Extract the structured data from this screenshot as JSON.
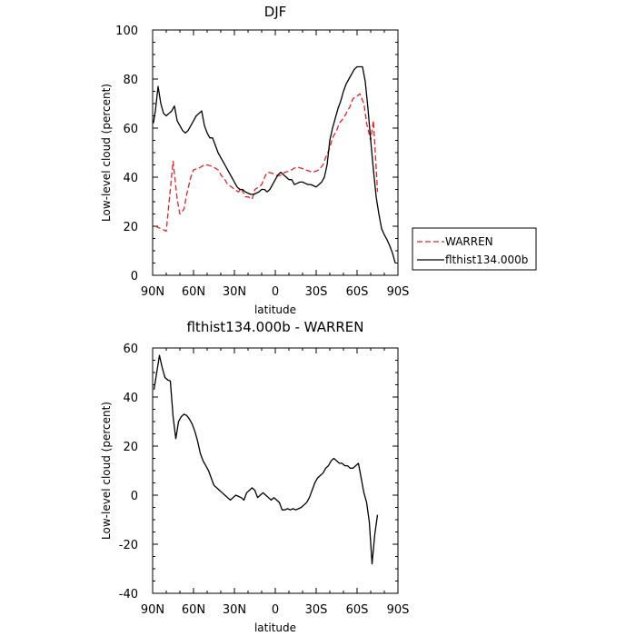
{
  "chart_data": [
    {
      "type": "line",
      "title": "DJF",
      "xlabel": "latitude",
      "ylabel": "Low-level cloud (percent)",
      "xlim": [
        90,
        -90
      ],
      "ylim": [
        0,
        100
      ],
      "x_ticks": [
        90,
        60,
        30,
        0,
        -30,
        -60,
        -90
      ],
      "x_tick_labels": [
        "90N",
        "60N",
        "30N",
        "0",
        "30S",
        "60S",
        "90S"
      ],
      "y_ticks": [
        0,
        20,
        40,
        60,
        80,
        100
      ],
      "y_tick_labels": [
        "0",
        "20",
        "40",
        "60",
        "80",
        "100"
      ],
      "grid": false,
      "legend_position": "right",
      "series": [
        {
          "name": "WARREN",
          "color": "#e8222a",
          "dash": "dashed",
          "x": [
            88,
            80,
            75,
            72,
            70,
            67,
            65,
            62,
            60,
            57,
            55,
            52,
            50,
            47,
            45,
            42,
            40,
            37,
            35,
            32,
            30,
            27,
            25,
            22,
            20,
            17,
            15,
            12,
            10,
            7,
            5,
            2,
            0,
            -2,
            -5,
            -7,
            -10,
            -12,
            -15,
            -17,
            -20,
            -22,
            -25,
            -27,
            -30,
            -32,
            -35,
            -37,
            -40,
            -42,
            -45,
            -47,
            -50,
            -52,
            -55,
            -57,
            -60,
            -62,
            -65,
            -67,
            -70,
            -72,
            -75
          ],
          "y": [
            20,
            18,
            46.5,
            31,
            25,
            27,
            33,
            40,
            43,
            43.5,
            44,
            45,
            45,
            44.5,
            44,
            43,
            41,
            39,
            37,
            36,
            35,
            34,
            35.5,
            32,
            32,
            31,
            35,
            36,
            37,
            41,
            42,
            41.5,
            41,
            40.5,
            41,
            42,
            42.5,
            43,
            44,
            44,
            43.5,
            43,
            42.5,
            42,
            42.5,
            43,
            45,
            48,
            52,
            56,
            59,
            62,
            64,
            66,
            69,
            72,
            73,
            74,
            70,
            62,
            55,
            63,
            34
          ]
        },
        {
          "name": "flthist134.000b",
          "color": "#000000",
          "dash": "solid",
          "x": [
            89.5,
            88,
            86,
            84,
            82,
            80,
            78,
            76,
            74,
            72,
            70,
            68,
            66,
            64,
            62,
            60,
            58,
            56,
            54,
            52,
            50,
            48,
            46,
            44,
            42,
            40,
            38,
            36,
            34,
            32,
            30,
            28,
            26,
            24,
            22,
            20,
            18,
            16,
            14,
            12,
            10,
            8,
            6,
            4,
            2,
            0,
            -2,
            -4,
            -6,
            -8,
            -10,
            -12,
            -14,
            -16,
            -18,
            -20,
            -22,
            -24,
            -26,
            -28,
            -30,
            -32,
            -34,
            -36,
            -38,
            -40,
            -42,
            -44,
            -46,
            -48,
            -50,
            -52,
            -54,
            -56,
            -58,
            -60,
            -62,
            -64,
            -66,
            -68,
            -70,
            -72,
            -74,
            -76,
            -78,
            -80,
            -82,
            -84,
            -86,
            -88
          ],
          "y": [
            62,
            67,
            77,
            70,
            66,
            65,
            66,
            67,
            69,
            63,
            61,
            59,
            58,
            59,
            61,
            63,
            65,
            66,
            67,
            61,
            58,
            56,
            56,
            53,
            50,
            48,
            46,
            44,
            42,
            40,
            38,
            36,
            35,
            35,
            34,
            33.5,
            33,
            33,
            33.5,
            34,
            35,
            35,
            34,
            35,
            37,
            39,
            41,
            42,
            41,
            40,
            39,
            39,
            37,
            37.5,
            38,
            38,
            37.5,
            37,
            37,
            36.5,
            36,
            37,
            38,
            40,
            45,
            55,
            60,
            64,
            68,
            71,
            75,
            78,
            80,
            82,
            84,
            85,
            85,
            85,
            79,
            68,
            55,
            43,
            32,
            25,
            19,
            16.5,
            14.5,
            12,
            9,
            5
          ]
        }
      ]
    },
    {
      "type": "line",
      "title": "flthist134.000b - WARREN",
      "xlabel": "latitude",
      "ylabel": "Low-level cloud (percent)",
      "xlim": [
        90,
        -90
      ],
      "ylim": [
        -40,
        60
      ],
      "x_ticks": [
        90,
        60,
        30,
        0,
        -30,
        -60,
        -90
      ],
      "x_tick_labels": [
        "90N",
        "60N",
        "30N",
        "0",
        "30S",
        "60S",
        "90S"
      ],
      "y_ticks": [
        -40,
        -20,
        0,
        20,
        40,
        60
      ],
      "y_tick_labels": [
        "-40",
        "-20",
        "0",
        "20",
        "40",
        "60"
      ],
      "grid": false,
      "series": [
        {
          "color": "#000000",
          "dash": "solid",
          "x": [
            89,
            87,
            85,
            83,
            81,
            79,
            77,
            75,
            73,
            71,
            69,
            67,
            65,
            63,
            61,
            59,
            57,
            55,
            53,
            51,
            49,
            47,
            45,
            43,
            41,
            39,
            37,
            35,
            33,
            31,
            29,
            27,
            25,
            23,
            21,
            19,
            17,
            15,
            13,
            11,
            9,
            7,
            5,
            3,
            1,
            -1,
            -3,
            -5,
            -7,
            -9,
            -11,
            -13,
            -15,
            -17,
            -19,
            -21,
            -23,
            -25,
            -27,
            -29,
            -31,
            -33,
            -35,
            -37,
            -39,
            -41,
            -43,
            -45,
            -47,
            -49,
            -51,
            -53,
            -55,
            -57,
            -59,
            -61,
            -63,
            -65,
            -67,
            -69,
            -71,
            -73,
            -75
          ],
          "y": [
            43,
            50,
            57,
            52,
            48,
            47,
            46.5,
            32,
            23,
            30,
            32,
            33,
            32.5,
            31,
            29,
            26,
            22,
            17,
            14,
            12,
            10,
            7,
            4,
            3,
            2,
            1,
            0,
            -1,
            -2,
            -1,
            0,
            -0.5,
            -1,
            -2,
            1,
            2,
            3,
            2,
            -1,
            0,
            1,
            0,
            -1,
            -2,
            -1,
            -2,
            -3,
            -6,
            -6,
            -5.5,
            -6,
            -5.5,
            -6,
            -5.5,
            -5,
            -4,
            -3,
            -1,
            2,
            5,
            7,
            8,
            9,
            11,
            12,
            14,
            15,
            14,
            13,
            13,
            12,
            12,
            11,
            11,
            12,
            13,
            7,
            1,
            -3,
            -11,
            -28,
            -16,
            -8
          ]
        }
      ]
    }
  ]
}
